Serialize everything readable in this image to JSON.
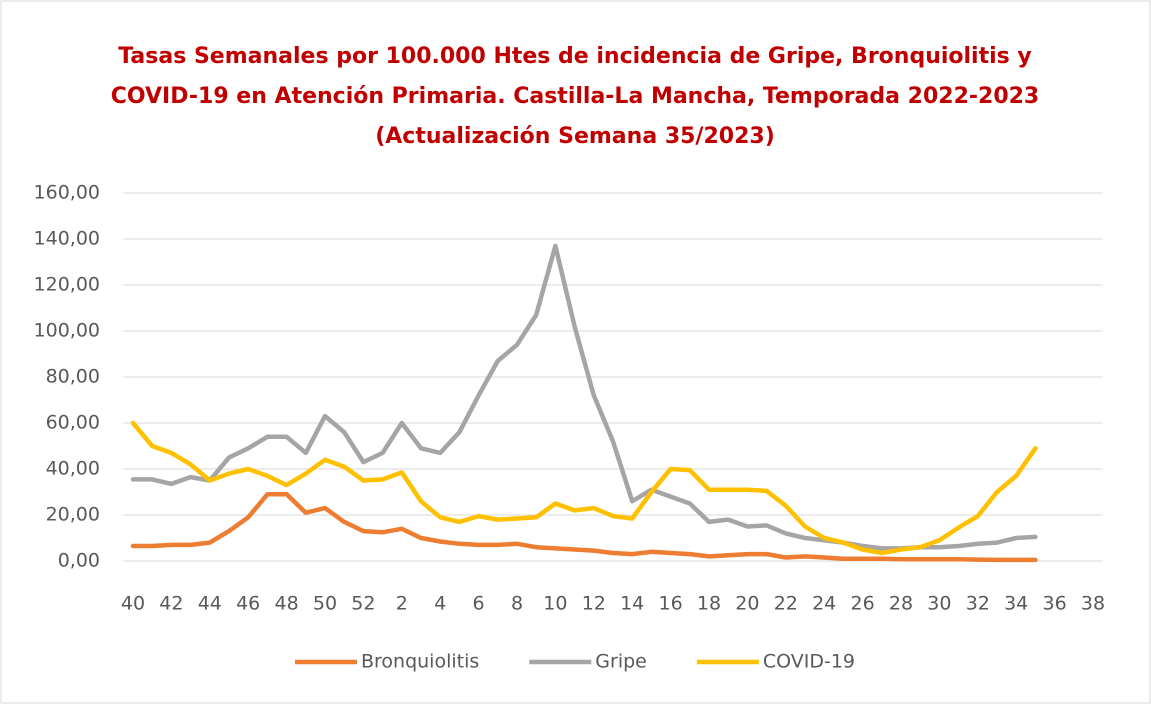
{
  "chart_data": {
    "type": "line",
    "title": [
      "Tasas Semanales por 100.000 Htes de incidencia de Gripe, Bronquiolitis y",
      "COVID-19 en Atención Primaria. Castilla-La Mancha, Temporada 2022-2023",
      "(Actualización Semana 35/2023)"
    ],
    "title_color": "#c00000",
    "categories": [
      "40",
      null,
      "42",
      null,
      "44",
      null,
      "46",
      null,
      "48",
      null,
      "50",
      null,
      "52",
      null,
      "2",
      null,
      "4",
      null,
      "6",
      null,
      "8",
      null,
      "10",
      null,
      "12",
      null,
      "14",
      null,
      "16",
      null,
      "18",
      null,
      "20",
      null,
      "22",
      null,
      "24",
      null,
      "26",
      null,
      "28",
      null,
      "30",
      null,
      "32",
      null,
      "34",
      null,
      "36",
      null,
      "38"
    ],
    "series": [
      {
        "name": "Bronquiolitis",
        "color": "#ed7d31",
        "values": [
          6.5,
          6.5,
          7,
          7,
          8,
          13,
          19,
          29,
          29,
          21,
          23,
          17,
          13,
          12.5,
          14,
          10,
          8.5,
          7.5,
          7,
          7,
          7.5,
          6,
          5.5,
          5,
          4.5,
          3.5,
          3,
          4,
          3.5,
          3,
          2,
          2.5,
          3,
          3,
          1.5,
          2,
          1.5,
          1,
          1,
          1,
          0.8,
          0.8,
          0.8,
          0.8,
          0.6,
          0.5,
          0.5,
          0.5,
          null,
          null,
          null
        ]
      },
      {
        "name": "Gripe",
        "color": "#a5a5a5",
        "values": [
          35.5,
          35.5,
          33.5,
          36.5,
          35,
          45,
          49,
          54,
          54,
          47,
          63,
          56,
          43,
          47,
          60,
          49,
          47,
          56,
          72,
          87,
          94,
          107,
          137,
          102,
          72,
          52,
          26,
          31,
          28,
          25,
          17,
          18,
          15,
          15.5,
          12,
          10,
          9,
          8,
          6.5,
          5.5,
          5.5,
          6,
          6,
          6.5,
          7.5,
          8,
          10,
          10.5,
          null,
          null,
          null
        ]
      },
      {
        "name": "COVID-19",
        "color": "#ffc000",
        "values": [
          60,
          50,
          47,
          42,
          35,
          38,
          40,
          37,
          33,
          38,
          44,
          41,
          35,
          35.5,
          38.5,
          26,
          19,
          17,
          19.5,
          18,
          18.5,
          19,
          25,
          22,
          23,
          19.5,
          18.5,
          30,
          40,
          39.5,
          31,
          31,
          31,
          30.5,
          24,
          15,
          10,
          8,
          5,
          3.5,
          5,
          6,
          9,
          14.5,
          19.5,
          30,
          37,
          49,
          null,
          null,
          null
        ]
      }
    ],
    "ylim": [
      0,
      160
    ],
    "yticks": [
      {
        "value": 0,
        "label": "0,00"
      },
      {
        "value": 20,
        "label": "20,00"
      },
      {
        "value": 40,
        "label": "40,00"
      },
      {
        "value": 60,
        "label": "60,00"
      },
      {
        "value": 80,
        "label": "80,00"
      },
      {
        "value": 100,
        "label": "100,00"
      },
      {
        "value": 120,
        "label": "120,00"
      },
      {
        "value": 140,
        "label": "140,00"
      },
      {
        "value": 160,
        "label": "160,00"
      }
    ],
    "grid": true,
    "legend": "bottom"
  }
}
